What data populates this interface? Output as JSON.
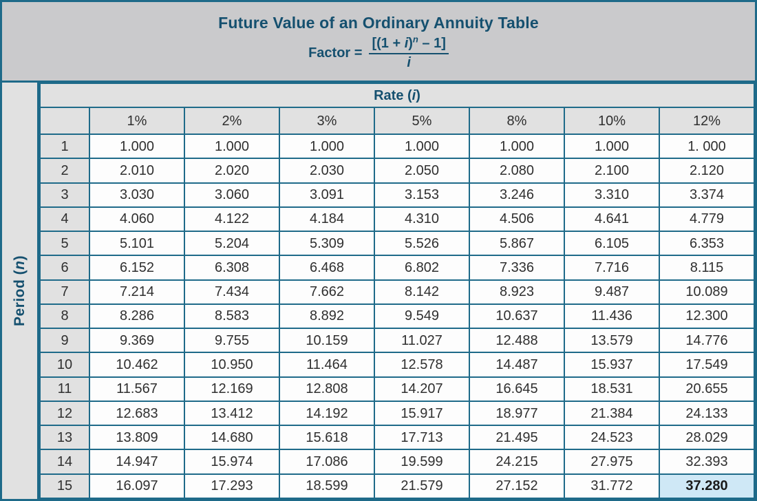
{
  "colors": {
    "border_teal": "#1e6a89",
    "band_gray": "#cacacc",
    "cell_gray": "#e1e1e1",
    "cell_white": "#fdfdfd",
    "heading_teal": "#15506f",
    "text_dark": "#2f2f2f",
    "highlight_blue": "#cfe8f6",
    "highlight_text": "#1a1a1a"
  },
  "header": {
    "title": "Future Value of an Ordinary Annuity Table",
    "formula": {
      "lhs": "Factor =",
      "num_pre": "[(1 + ",
      "num_var": "i",
      "num_close": ")",
      "num_exp": "n",
      "num_post": " – 1]",
      "den": "i"
    }
  },
  "table": {
    "rate_header": {
      "pre": "Rate (",
      "var": "i",
      "post": ")"
    },
    "period_label": {
      "pre": "Period (",
      "var": "n",
      "post": ")"
    },
    "rates": [
      "1%",
      "2%",
      "3%",
      "5%",
      "8%",
      "10%",
      "12%"
    ],
    "rows": [
      {
        "period": "1",
        "values": [
          "1.000",
          "1.000",
          "1.000",
          "1.000",
          "1.000",
          "1.000",
          "1. 000"
        ]
      },
      {
        "period": "2",
        "values": [
          "2.010",
          "2.020",
          "2.030",
          "2.050",
          "2.080",
          "2.100",
          "2.120"
        ]
      },
      {
        "period": "3",
        "values": [
          "3.030",
          "3.060",
          "3.091",
          "3.153",
          "3.246",
          "3.310",
          "3.374"
        ]
      },
      {
        "period": "4",
        "values": [
          "4.060",
          "4.122",
          "4.184",
          "4.310",
          "4.506",
          "4.641",
          "4.779"
        ]
      },
      {
        "period": "5",
        "values": [
          "5.101",
          "5.204",
          "5.309",
          "5.526",
          "5.867",
          "6.105",
          "6.353"
        ]
      },
      {
        "period": "6",
        "values": [
          "6.152",
          "6.308",
          "6.468",
          "6.802",
          "7.336",
          "7.716",
          "8.115"
        ]
      },
      {
        "period": "7",
        "values": [
          "7.214",
          "7.434",
          "7.662",
          "8.142",
          "8.923",
          "9.487",
          "10.089"
        ]
      },
      {
        "period": "8",
        "values": [
          "8.286",
          "8.583",
          "8.892",
          "9.549",
          "10.637",
          "11.436",
          "12.300"
        ]
      },
      {
        "period": "9",
        "values": [
          "9.369",
          "9.755",
          "10.159",
          "11.027",
          "12.488",
          "13.579",
          "14.776"
        ]
      },
      {
        "period": "10",
        "values": [
          "10.462",
          "10.950",
          "11.464",
          "12.578",
          "14.487",
          "15.937",
          "17.549"
        ]
      },
      {
        "period": "11",
        "values": [
          "11.567",
          "12.169",
          "12.808",
          "14.207",
          "16.645",
          "18.531",
          "20.655"
        ]
      },
      {
        "period": "12",
        "values": [
          "12.683",
          "13.412",
          "14.192",
          "15.917",
          "18.977",
          "21.384",
          "24.133"
        ]
      },
      {
        "period": "13",
        "values": [
          "13.809",
          "14.680",
          "15.618",
          "17.713",
          "21.495",
          "24.523",
          "28.029"
        ]
      },
      {
        "period": "14",
        "values": [
          "14.947",
          "15.974",
          "17.086",
          "19.599",
          "24.215",
          "27.975",
          "32.393"
        ]
      },
      {
        "period": "15",
        "values": [
          "16.097",
          "17.293",
          "18.599",
          "21.579",
          "27.152",
          "31.772",
          "37.280"
        ]
      }
    ],
    "highlight": {
      "row_index": 14,
      "col_index": 6,
      "value": "37.280"
    }
  }
}
